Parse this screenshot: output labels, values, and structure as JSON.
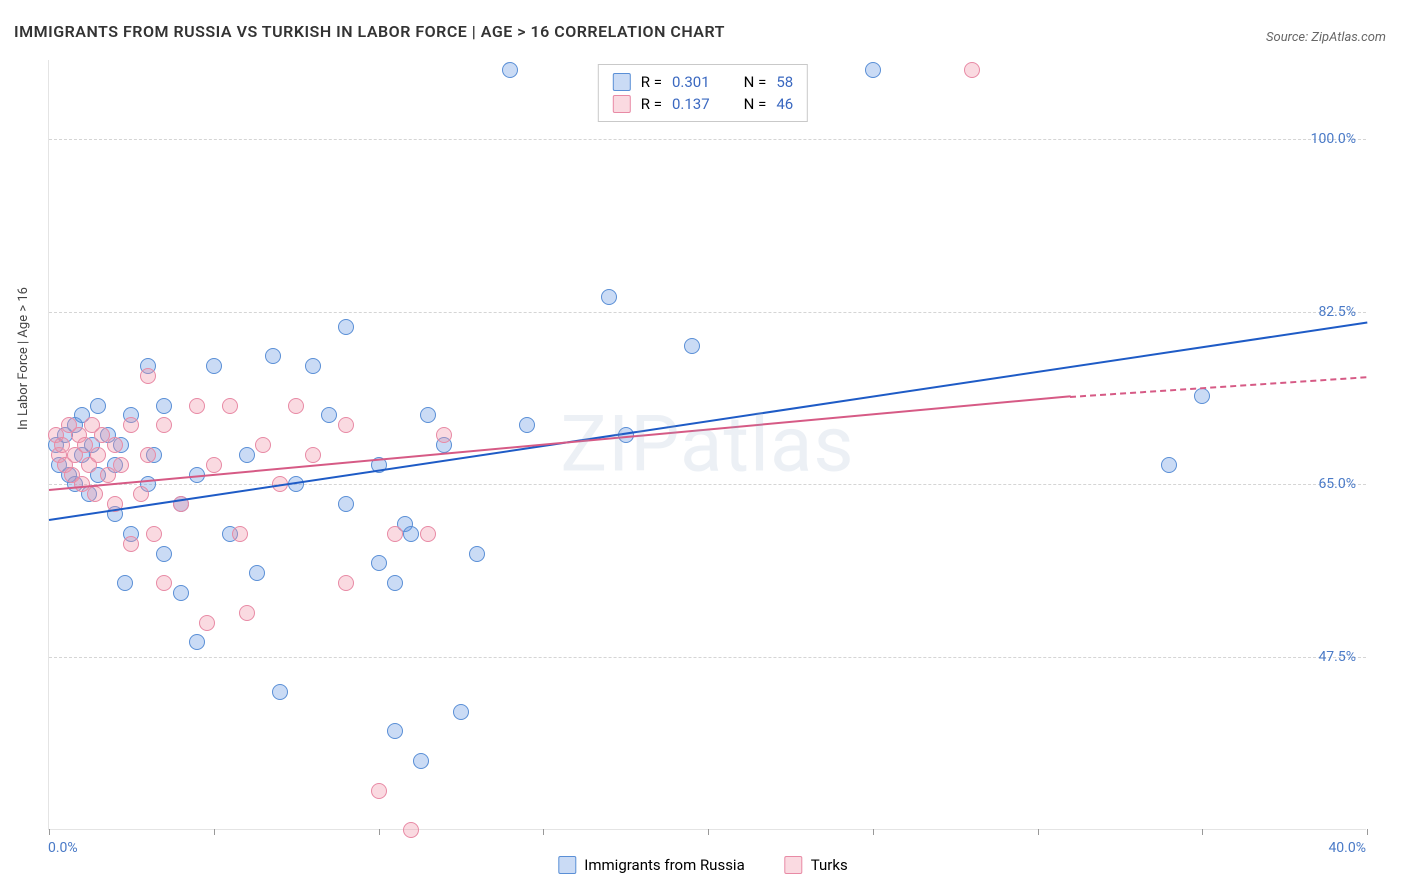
{
  "title": "IMMIGRANTS FROM RUSSIA VS TURKISH IN LABOR FORCE | AGE > 16 CORRELATION CHART",
  "source": "Source: ZipAtlas.com",
  "watermark": "ZIPatlas",
  "ylabel": "In Labor Force | Age > 16",
  "chart": {
    "type": "scatter-correlation",
    "background_color": "#ffffff",
    "grid_color": "#d5d5d5",
    "grid_style": "dashed",
    "xlim": [
      0,
      40
    ],
    "ylim": [
      30,
      108
    ],
    "xtick_labels": [
      "0.0%",
      "40.0%"
    ],
    "ytick_positions": [
      47.5,
      65.0,
      82.5,
      100.0
    ],
    "ytick_labels": [
      "47.5%",
      "65.0%",
      "82.5%",
      "100.0%"
    ],
    "xtick_marks": [
      0,
      5,
      10,
      15,
      20,
      25,
      30,
      35,
      40
    ],
    "tick_label_color": "#4a7ac7",
    "tick_fontsize": 14,
    "title_fontsize": 16,
    "label_fontsize": 13,
    "marker_size": 16,
    "marker_opacity": 0.5,
    "line_width": 2,
    "series": [
      {
        "name": "Immigrants from Russia",
        "color_fill": "rgba(104,153,225,0.35)",
        "color_stroke": "#5a8fd6",
        "trend_color": "#1e5bc6",
        "R": "0.301",
        "N": "58",
        "trend": {
          "x1": 0,
          "y1": 61.5,
          "x2": 40,
          "y2": 81.5
        },
        "points": [
          [
            0.2,
            69
          ],
          [
            0.3,
            67
          ],
          [
            0.5,
            70
          ],
          [
            0.6,
            66
          ],
          [
            0.8,
            65
          ],
          [
            0.8,
            71
          ],
          [
            1.0,
            68
          ],
          [
            1.0,
            72
          ],
          [
            1.2,
            64
          ],
          [
            1.3,
            69
          ],
          [
            1.5,
            66
          ],
          [
            1.5,
            73
          ],
          [
            1.8,
            70
          ],
          [
            2.0,
            62
          ],
          [
            2.0,
            67
          ],
          [
            2.2,
            69
          ],
          [
            2.3,
            55
          ],
          [
            2.5,
            72
          ],
          [
            2.5,
            60
          ],
          [
            3.0,
            65
          ],
          [
            3.0,
            77
          ],
          [
            3.2,
            68
          ],
          [
            3.5,
            58
          ],
          [
            3.5,
            73
          ],
          [
            4.0,
            63
          ],
          [
            4.0,
            54
          ],
          [
            4.5,
            49
          ],
          [
            4.5,
            66
          ],
          [
            5.0,
            77
          ],
          [
            5.5,
            60
          ],
          [
            6.0,
            68
          ],
          [
            6.3,
            56
          ],
          [
            6.8,
            78
          ],
          [
            7.0,
            44
          ],
          [
            7.5,
            65
          ],
          [
            8.0,
            77
          ],
          [
            8.5,
            72
          ],
          [
            9.0,
            63
          ],
          [
            9.0,
            81
          ],
          [
            10.0,
            67
          ],
          [
            10.0,
            57
          ],
          [
            10.5,
            40
          ],
          [
            10.5,
            55
          ],
          [
            10.8,
            61
          ],
          [
            11.0,
            60
          ],
          [
            11.3,
            37
          ],
          [
            11.5,
            72
          ],
          [
            12.0,
            69
          ],
          [
            12.5,
            42
          ],
          [
            13.0,
            58
          ],
          [
            14.0,
            107
          ],
          [
            14.5,
            71
          ],
          [
            17.0,
            84
          ],
          [
            17.5,
            70
          ],
          [
            19.5,
            79
          ],
          [
            25.0,
            107
          ],
          [
            34.0,
            67
          ],
          [
            35.0,
            74
          ]
        ]
      },
      {
        "name": "Turks",
        "color_fill": "rgba(240,150,170,0.35)",
        "color_stroke": "#e88aa5",
        "trend_color": "#d65a85",
        "R": "0.137",
        "N": "46",
        "trend": {
          "x1": 0,
          "y1": 64.5,
          "x2": 31,
          "y2": 74,
          "dashed_extend_to": 40,
          "dashed_y_at_40": 76
        },
        "points": [
          [
            0.2,
            70
          ],
          [
            0.3,
            68
          ],
          [
            0.4,
            69
          ],
          [
            0.5,
            67
          ],
          [
            0.6,
            71
          ],
          [
            0.7,
            66
          ],
          [
            0.8,
            68
          ],
          [
            0.9,
            70
          ],
          [
            1.0,
            65
          ],
          [
            1.1,
            69
          ],
          [
            1.2,
            67
          ],
          [
            1.3,
            71
          ],
          [
            1.4,
            64
          ],
          [
            1.5,
            68
          ],
          [
            1.6,
            70
          ],
          [
            1.8,
            66
          ],
          [
            2.0,
            69
          ],
          [
            2.0,
            63
          ],
          [
            2.2,
            67
          ],
          [
            2.5,
            71
          ],
          [
            2.5,
            59
          ],
          [
            2.8,
            64
          ],
          [
            3.0,
            76
          ],
          [
            3.0,
            68
          ],
          [
            3.2,
            60
          ],
          [
            3.5,
            71
          ],
          [
            3.5,
            55
          ],
          [
            4.0,
            63
          ],
          [
            4.5,
            73
          ],
          [
            4.8,
            51
          ],
          [
            5.0,
            67
          ],
          [
            5.5,
            73
          ],
          [
            5.8,
            60
          ],
          [
            6.0,
            52
          ],
          [
            6.5,
            69
          ],
          [
            7.0,
            65
          ],
          [
            7.5,
            73
          ],
          [
            8.0,
            68
          ],
          [
            9.0,
            55
          ],
          [
            9.0,
            71
          ],
          [
            10.0,
            34
          ],
          [
            10.5,
            60
          ],
          [
            11.0,
            30
          ],
          [
            11.5,
            60
          ],
          [
            12.0,
            70
          ],
          [
            28.0,
            107
          ]
        ]
      }
    ]
  },
  "legend_top": {
    "rows": [
      {
        "swatch_fill": "rgba(104,153,225,0.35)",
        "swatch_stroke": "#5a8fd6",
        "r_label": "R =",
        "r_value": "0.301",
        "n_label": "N =",
        "n_value": "58"
      },
      {
        "swatch_fill": "rgba(240,150,170,0.35)",
        "swatch_stroke": "#e88aa5",
        "r_label": "R =",
        "r_value": "0.137",
        "n_label": "N =",
        "n_value": "46"
      }
    ]
  },
  "legend_bottom": {
    "items": [
      {
        "swatch_fill": "rgba(104,153,225,0.35)",
        "swatch_stroke": "#5a8fd6",
        "label": "Immigrants from Russia"
      },
      {
        "swatch_fill": "rgba(240,150,170,0.35)",
        "swatch_stroke": "#e88aa5",
        "label": "Turks"
      }
    ]
  }
}
